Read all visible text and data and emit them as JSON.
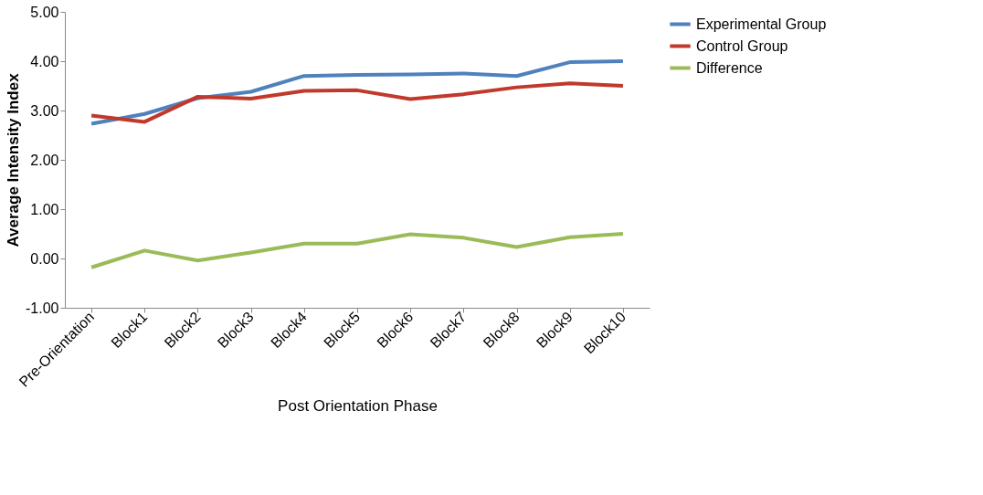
{
  "chart_data": {
    "type": "line",
    "xlabel": "Post Orientation Phase",
    "ylabel": "Average   Intensity   Index",
    "categories": [
      "Pre-Orientation",
      "Block1",
      "Block2",
      "Block3",
      "Block4",
      "Block5",
      "Block6",
      "Block7",
      "Block8",
      "Block9",
      "Block10"
    ],
    "series": [
      {
        "name": "Experimental Group",
        "color": "#4f81bd",
        "values": [
          2.73,
          2.93,
          3.25,
          3.38,
          3.7,
          3.72,
          3.73,
          3.75,
          3.7,
          3.98,
          4.0
        ]
      },
      {
        "name": "Control Group",
        "color": "#c0392b",
        "values": [
          2.9,
          2.77,
          3.28,
          3.24,
          3.4,
          3.41,
          3.23,
          3.33,
          3.47,
          3.55,
          3.5
        ]
      },
      {
        "name": "Difference",
        "color": "#9bbb59",
        "values": [
          -0.18,
          0.16,
          -0.04,
          0.12,
          0.3,
          0.3,
          0.49,
          0.42,
          0.23,
          0.43,
          0.5
        ]
      }
    ],
    "ylim": [
      -1,
      5
    ],
    "yticks": [
      {
        "value": -1,
        "label": "-1.00"
      },
      {
        "value": 0,
        "label": "0.00"
      },
      {
        "value": 1,
        "label": "1.00"
      },
      {
        "value": 2,
        "label": "2.00"
      },
      {
        "value": 3,
        "label": "3.00"
      },
      {
        "value": 4,
        "label": "4.00"
      },
      {
        "value": 5,
        "label": "5.00"
      }
    ],
    "grid": false,
    "legend": "right",
    "marker": "none",
    "line_style": "solid"
  }
}
